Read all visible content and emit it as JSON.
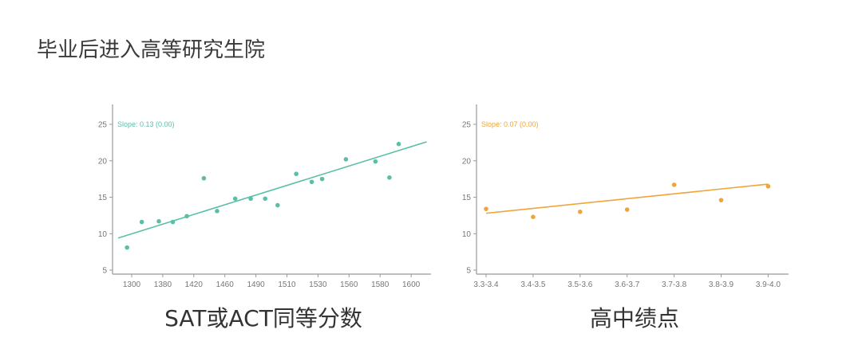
{
  "title": "毕业后进入高等研究生院",
  "chart_data": [
    {
      "type": "scatter",
      "xlabel": "SAT或ACT同等分数",
      "ylabel": "",
      "color": "#5bbfa8",
      "annotation": "Slope: 0.13 (0.00)",
      "x_ticks": [
        1300,
        1380,
        1420,
        1460,
        1490,
        1510,
        1530,
        1560,
        1580,
        1600
      ],
      "y_ticks": [
        5,
        10,
        15,
        20,
        25
      ],
      "ylim": [
        4,
        27.5
      ],
      "grid": false,
      "points": [
        {
          "x": 1288,
          "y": 8.1
        },
        {
          "x": 1326,
          "y": 11.6
        },
        {
          "x": 1370,
          "y": 11.7
        },
        {
          "x": 1393,
          "y": 11.6
        },
        {
          "x": 1411,
          "y": 12.4
        },
        {
          "x": 1433,
          "y": 17.6
        },
        {
          "x": 1450,
          "y": 13.1
        },
        {
          "x": 1470,
          "y": 14.8
        },
        {
          "x": 1485,
          "y": 14.8
        },
        {
          "x": 1496,
          "y": 14.8
        },
        {
          "x": 1504,
          "y": 13.9
        },
        {
          "x": 1516,
          "y": 18.2
        },
        {
          "x": 1526,
          "y": 17.1
        },
        {
          "x": 1534,
          "y": 17.5
        },
        {
          "x": 1557,
          "y": 20.2
        },
        {
          "x": 1577,
          "y": 19.9
        },
        {
          "x": 1586,
          "y": 17.7
        },
        {
          "x": 1592,
          "y": 22.3
        }
      ],
      "trendline": {
        "x": [
          1265,
          1610
        ],
        "y": [
          9.4,
          22.6
        ]
      }
    },
    {
      "type": "scatter",
      "xlabel": "高中绩点",
      "ylabel": "",
      "color": "#f0a43a",
      "annotation": "Slope: 0.07 (0.00)",
      "x_ticks": [
        "3.3-3.4",
        "3.4-3.5",
        "3.5-3.6",
        "3.6-3.7",
        "3.7-3.8",
        "3.8-3.9",
        "3.9-4.0"
      ],
      "y_ticks": [
        5,
        10,
        15,
        20,
        25
      ],
      "ylim": [
        4,
        27.5
      ],
      "grid": false,
      "points": [
        {
          "x": "3.3-3.4",
          "y": 13.4
        },
        {
          "x": "3.4-3.5",
          "y": 12.3
        },
        {
          "x": "3.5-3.6",
          "y": 13.0
        },
        {
          "x": "3.6-3.7",
          "y": 13.3
        },
        {
          "x": "3.7-3.8",
          "y": 16.7
        },
        {
          "x": "3.8-3.9",
          "y": 14.6
        },
        {
          "x": "3.9-4.0",
          "y": 16.5
        }
      ],
      "trendline": {
        "x": [
          "3.3-3.4",
          "3.9-4.0"
        ],
        "y": [
          12.8,
          16.8
        ]
      }
    }
  ]
}
